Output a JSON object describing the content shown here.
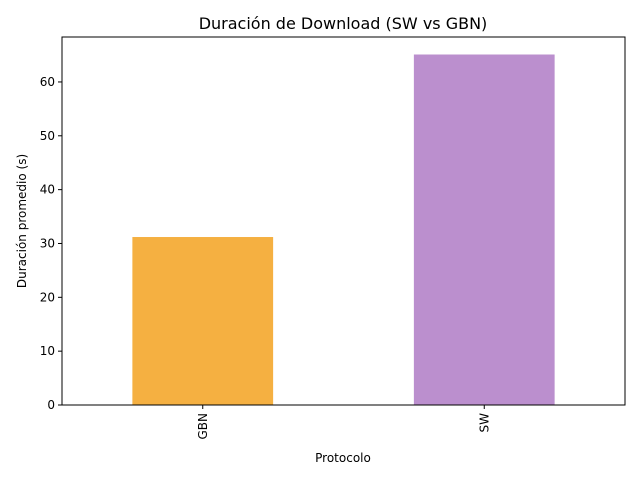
{
  "chart_data": {
    "type": "bar",
    "title": "Duración de Download (SW vs GBN)",
    "xlabel": "Protocolo",
    "ylabel": "Duración promedio (s)",
    "categories": [
      "GBN",
      "SW"
    ],
    "values": [
      31.2,
      65.1
    ],
    "colors": [
      "#f5b041",
      "#bb8fce"
    ],
    "ylim": [
      0,
      68.35
    ],
    "yticks": [
      0,
      10,
      20,
      30,
      40,
      50,
      60
    ],
    "grid": false,
    "legend": "none"
  }
}
